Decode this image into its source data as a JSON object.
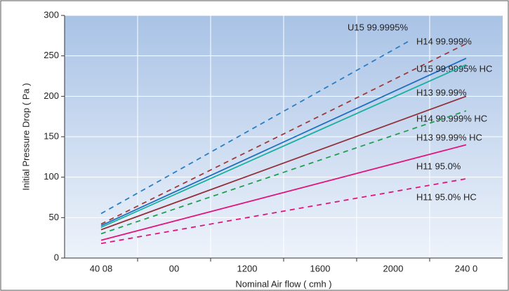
{
  "chart_data": {
    "type": "line",
    "x_label": "Nominal Air flow ( cmh )",
    "y_label": "Initial Pressure Drop ( Pa )",
    "xlim": [
      200,
      2600
    ],
    "xticks": [
      {
        "value": 400,
        "label": "40 08"
      },
      {
        "value": 800,
        "label": "00"
      },
      1200,
      1600,
      2000,
      {
        "value": 2400,
        "label": "240 0"
      }
    ],
    "x_grid_lines": [
      600,
      1000,
      1400,
      1800,
      2200
    ],
    "ylim": [
      0,
      300
    ],
    "yticks": [
      0,
      50,
      100,
      150,
      200,
      250,
      300
    ],
    "grid": true,
    "series": [
      {
        "name": "U15 99.9995%",
        "color": "#2a7fc4",
        "dashed": true,
        "x": [
          400,
          2100
        ],
        "values": [
          55,
          270
        ]
      },
      {
        "name": "H14 99.999%",
        "color": "#9e3a3a",
        "dashed": true,
        "x": [
          400,
          2400
        ],
        "values": [
          42,
          265
        ]
      },
      {
        "name": "U15 99.9995% HC",
        "color": "#1f6fc0",
        "dashed": false,
        "x": [
          400,
          2400
        ],
        "values": [
          40,
          247
        ]
      },
      {
        "name": "H13 99.99%",
        "color": "#18b0a0",
        "dashed": false,
        "x": [
          400,
          2400
        ],
        "values": [
          38,
          239
        ]
      },
      {
        "name": "H14 99.999% HC",
        "color": "#93303a",
        "dashed": false,
        "x": [
          400,
          2400
        ],
        "values": [
          35,
          200
        ]
      },
      {
        "name": "H13 99.99% HC",
        "color": "#1fa050",
        "dashed": true,
        "x": [
          400,
          2400
        ],
        "values": [
          30,
          182
        ]
      },
      {
        "name": "H11 95.0%",
        "color": "#e0157e",
        "dashed": false,
        "x": [
          400,
          2400
        ],
        "values": [
          22,
          140
        ]
      },
      {
        "name": "H11 95.0% HC",
        "color": "#e0157e",
        "dashed": true,
        "x": [
          400,
          2400
        ],
        "values": [
          18,
          98
        ]
      }
    ]
  }
}
